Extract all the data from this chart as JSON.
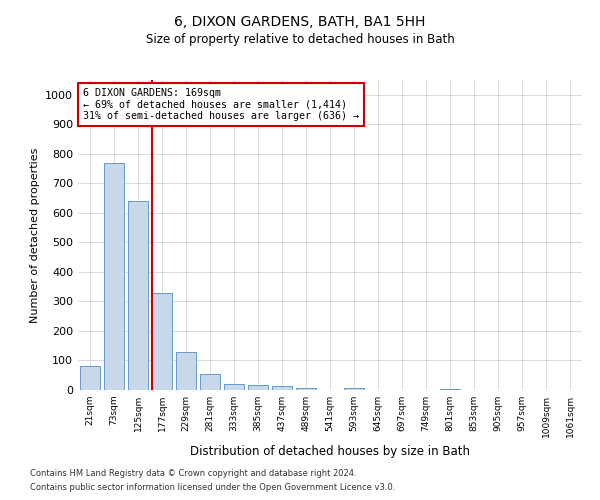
{
  "title1": "6, DIXON GARDENS, BATH, BA1 5HH",
  "title2": "Size of property relative to detached houses in Bath",
  "xlabel": "Distribution of detached houses by size in Bath",
  "ylabel": "Number of detached properties",
  "annotation_line1": "6 DIXON GARDENS: 169sqm",
  "annotation_line2": "← 69% of detached houses are smaller (1,414)",
  "annotation_line3": "31% of semi-detached houses are larger (636) →",
  "property_size": 169,
  "categories": [
    "21sqm",
    "73sqm",
    "125sqm",
    "177sqm",
    "229sqm",
    "281sqm",
    "333sqm",
    "385sqm",
    "437sqm",
    "489sqm",
    "541sqm",
    "593sqm",
    "645sqm",
    "697sqm",
    "749sqm",
    "801sqm",
    "853sqm",
    "905sqm",
    "957sqm",
    "1009sqm",
    "1061sqm"
  ],
  "values": [
    80,
    770,
    640,
    330,
    130,
    55,
    22,
    17,
    12,
    8,
    0,
    7,
    0,
    0,
    0,
    5,
    0,
    0,
    0,
    0,
    0
  ],
  "bar_color": "#c8d8e8",
  "bar_edge_color": "#6699cc",
  "red_line_color": "#cc0000",
  "annotation_box_color": "#cc0000",
  "grid_color": "#cccccc",
  "background_color": "#ffffff",
  "ylim": [
    0,
    1050
  ],
  "yticks": [
    0,
    100,
    200,
    300,
    400,
    500,
    600,
    700,
    800,
    900,
    1000
  ],
  "footnote1": "Contains HM Land Registry data © Crown copyright and database right 2024.",
  "footnote2": "Contains public sector information licensed under the Open Government Licence v3.0.",
  "red_line_x": 2.575
}
